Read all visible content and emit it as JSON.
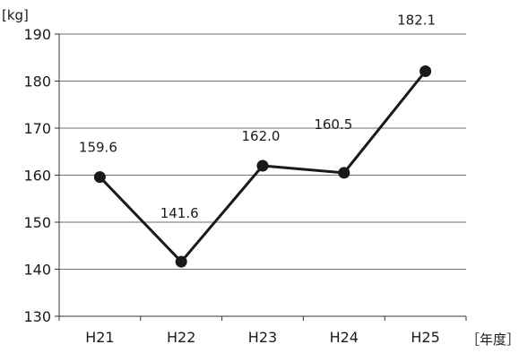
{
  "chart_data": {
    "type": "line",
    "title": "",
    "categories": [
      "H21",
      "H22",
      "H23",
      "H24",
      "H25"
    ],
    "series": [
      {
        "name": "",
        "values": [
          159.6,
          141.6,
          162.0,
          160.5,
          182.1
        ]
      }
    ],
    "data_labels": [
      "159.6",
      "141.6",
      "162.0",
      "160.5",
      "182.1"
    ],
    "ylabel": "[kg]",
    "xlabel": "［年度］",
    "ylim": [
      130,
      190
    ],
    "yticks": [
      130,
      140,
      150,
      160,
      170,
      180,
      190
    ],
    "grid": true,
    "legend": "none",
    "colors": {
      "line": "#1a1a1a",
      "marker": "#1a1a1a",
      "grid": "#6e6e6e",
      "axis": "#333333"
    }
  }
}
